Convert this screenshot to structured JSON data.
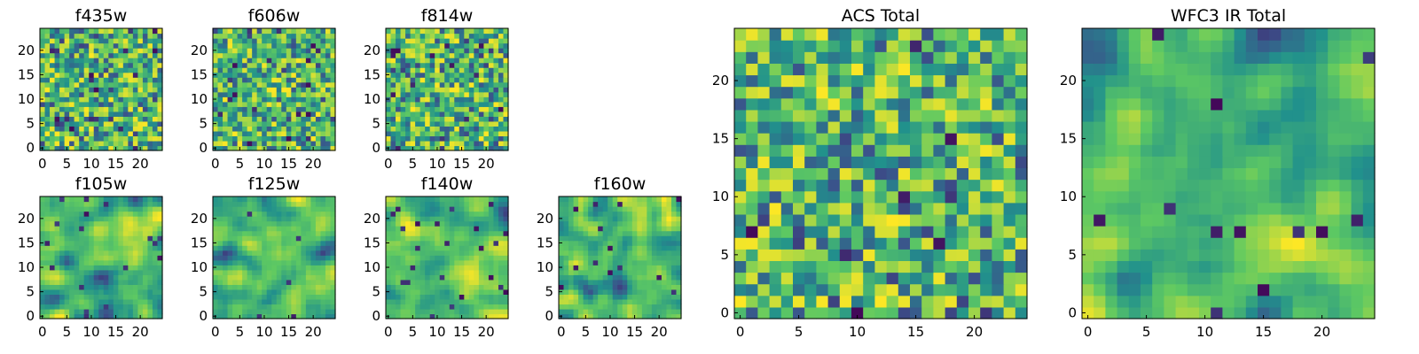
{
  "chart_data": [
    {
      "type": "heatmap",
      "title": "f435w",
      "xlim": [
        0,
        25
      ],
      "ylim": [
        0,
        25
      ],
      "xticks": [
        "0",
        "5",
        "10",
        "15",
        "20"
      ],
      "yticks": [
        "0",
        "5",
        "10",
        "15",
        "20"
      ],
      "grid_size": 25,
      "colormap": "viridis",
      "texture": "noisy"
    },
    {
      "type": "heatmap",
      "title": "f606w",
      "xlim": [
        0,
        25
      ],
      "ylim": [
        0,
        25
      ],
      "xticks": [
        "0",
        "5",
        "10",
        "15",
        "20"
      ],
      "yticks": [
        "0",
        "5",
        "10",
        "15",
        "20"
      ],
      "grid_size": 25,
      "colormap": "viridis",
      "texture": "noisy"
    },
    {
      "type": "heatmap",
      "title": "f814w",
      "xlim": [
        0,
        25
      ],
      "ylim": [
        0,
        25
      ],
      "xticks": [
        "0",
        "5",
        "10",
        "15",
        "20"
      ],
      "yticks": [
        "0",
        "5",
        "10",
        "15",
        "20"
      ],
      "grid_size": 25,
      "colormap": "viridis",
      "texture": "noisy"
    },
    {
      "type": "heatmap",
      "title": "f105w",
      "xlim": [
        0,
        25
      ],
      "ylim": [
        0,
        25
      ],
      "xticks": [
        "0",
        "5",
        "10",
        "15",
        "20"
      ],
      "yticks": [
        "0",
        "5",
        "10",
        "15",
        "20"
      ],
      "grid_size": 25,
      "colormap": "viridis",
      "texture": "smooth"
    },
    {
      "type": "heatmap",
      "title": "f125w",
      "xlim": [
        0,
        25
      ],
      "ylim": [
        0,
        25
      ],
      "xticks": [
        "0",
        "5",
        "10",
        "15",
        "20"
      ],
      "yticks": [
        "0",
        "5",
        "10",
        "15",
        "20"
      ],
      "grid_size": 25,
      "colormap": "viridis",
      "texture": "smooth"
    },
    {
      "type": "heatmap",
      "title": "f140w",
      "xlim": [
        0,
        25
      ],
      "ylim": [
        0,
        25
      ],
      "xticks": [
        "0",
        "5",
        "10",
        "15",
        "20"
      ],
      "yticks": [
        "0",
        "5",
        "10",
        "15",
        "20"
      ],
      "grid_size": 25,
      "colormap": "viridis",
      "texture": "smooth"
    },
    {
      "type": "heatmap",
      "title": "f160w",
      "xlim": [
        0,
        25
      ],
      "ylim": [
        0,
        25
      ],
      "xticks": [
        "0",
        "5",
        "10",
        "15",
        "20"
      ],
      "yticks": [
        "0",
        "5",
        "10",
        "15",
        "20"
      ],
      "grid_size": 25,
      "colormap": "viridis",
      "texture": "smooth"
    },
    {
      "type": "heatmap",
      "title": "ACS Total",
      "xlim": [
        0,
        25
      ],
      "ylim": [
        0,
        25
      ],
      "xticks": [
        "0",
        "5",
        "10",
        "15",
        "20"
      ],
      "yticks": [
        "0",
        "5",
        "10",
        "15",
        "20"
      ],
      "grid_size": 25,
      "colormap": "viridis",
      "texture": "noisy"
    },
    {
      "type": "heatmap",
      "title": "WFC3 IR Total",
      "xlim": [
        0,
        25
      ],
      "ylim": [
        0,
        25
      ],
      "xticks": [
        "0",
        "5",
        "10",
        "15",
        "20"
      ],
      "yticks": [
        "0",
        "5",
        "10",
        "15",
        "20"
      ],
      "grid_size": 25,
      "colormap": "viridis",
      "texture": "smooth"
    }
  ],
  "colors": {
    "viridis": [
      "#440154",
      "#3b528b",
      "#21918c",
      "#5ec962",
      "#fde725"
    ],
    "axis": "#000000",
    "background": "#ffffff"
  }
}
